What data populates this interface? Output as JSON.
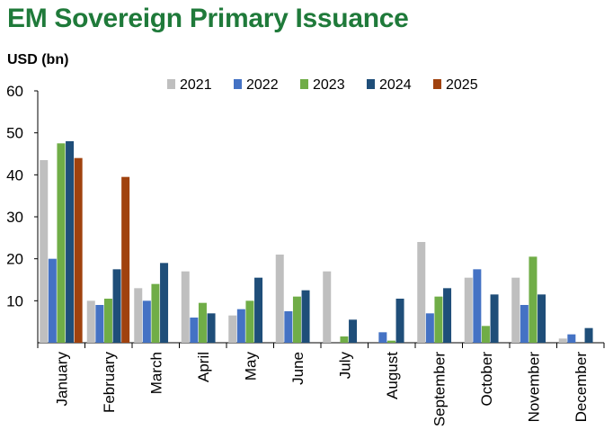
{
  "title": "EM Sovereign Primary Issuance",
  "unit_label": "USD (bn)",
  "chart_data": {
    "type": "bar",
    "title": "EM Sovereign Primary Issuance",
    "ylabel": "USD (bn)",
    "xlabel": "",
    "ylim": [
      0,
      60
    ],
    "yticks": [
      "60",
      "50",
      "40",
      "30",
      "20",
      "10"
    ],
    "legend_position": "top",
    "grid": false,
    "categories": [
      "January",
      "February",
      "March",
      "April",
      "May",
      "June",
      "July",
      "August",
      "September",
      "October",
      "November",
      "December"
    ],
    "series": [
      {
        "name": "2021",
        "color": "#bfbfbf",
        "values": [
          43.5,
          10,
          13,
          17,
          6.5,
          21,
          17,
          0,
          24,
          15.5,
          15.5,
          1
        ]
      },
      {
        "name": "2022",
        "color": "#4472c4",
        "values": [
          20,
          9,
          10,
          6,
          8,
          7.5,
          0,
          2.5,
          7,
          17.5,
          9,
          2
        ]
      },
      {
        "name": "2023",
        "color": "#70ad47",
        "values": [
          47.5,
          10.5,
          14,
          9.5,
          10,
          11,
          1.5,
          0.5,
          11,
          4,
          20.5,
          0
        ]
      },
      {
        "name": "2024",
        "color": "#1f4e79",
        "values": [
          48,
          17.5,
          19,
          7,
          15.5,
          12.5,
          5.5,
          10.5,
          13,
          11.5,
          11.5,
          3.5
        ]
      },
      {
        "name": "2025",
        "color": "#a0420e",
        "values": [
          44,
          39.5,
          0,
          0,
          0,
          0,
          0,
          0,
          0,
          0,
          0,
          0
        ]
      }
    ]
  }
}
